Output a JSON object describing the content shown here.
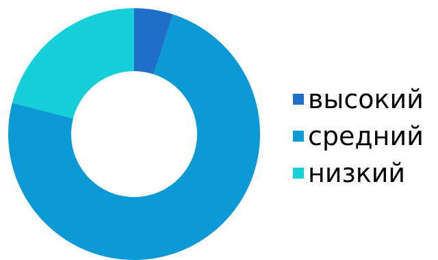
{
  "chart_data": {
    "type": "pie",
    "variant": "donut",
    "categories": [
      "высокий",
      "средний",
      "низкий"
    ],
    "values": [
      5,
      74,
      21
    ],
    "colors": [
      "#1f6fc9",
      "#0b9ad6",
      "#17cfd9"
    ],
    "legend_position": "right"
  }
}
